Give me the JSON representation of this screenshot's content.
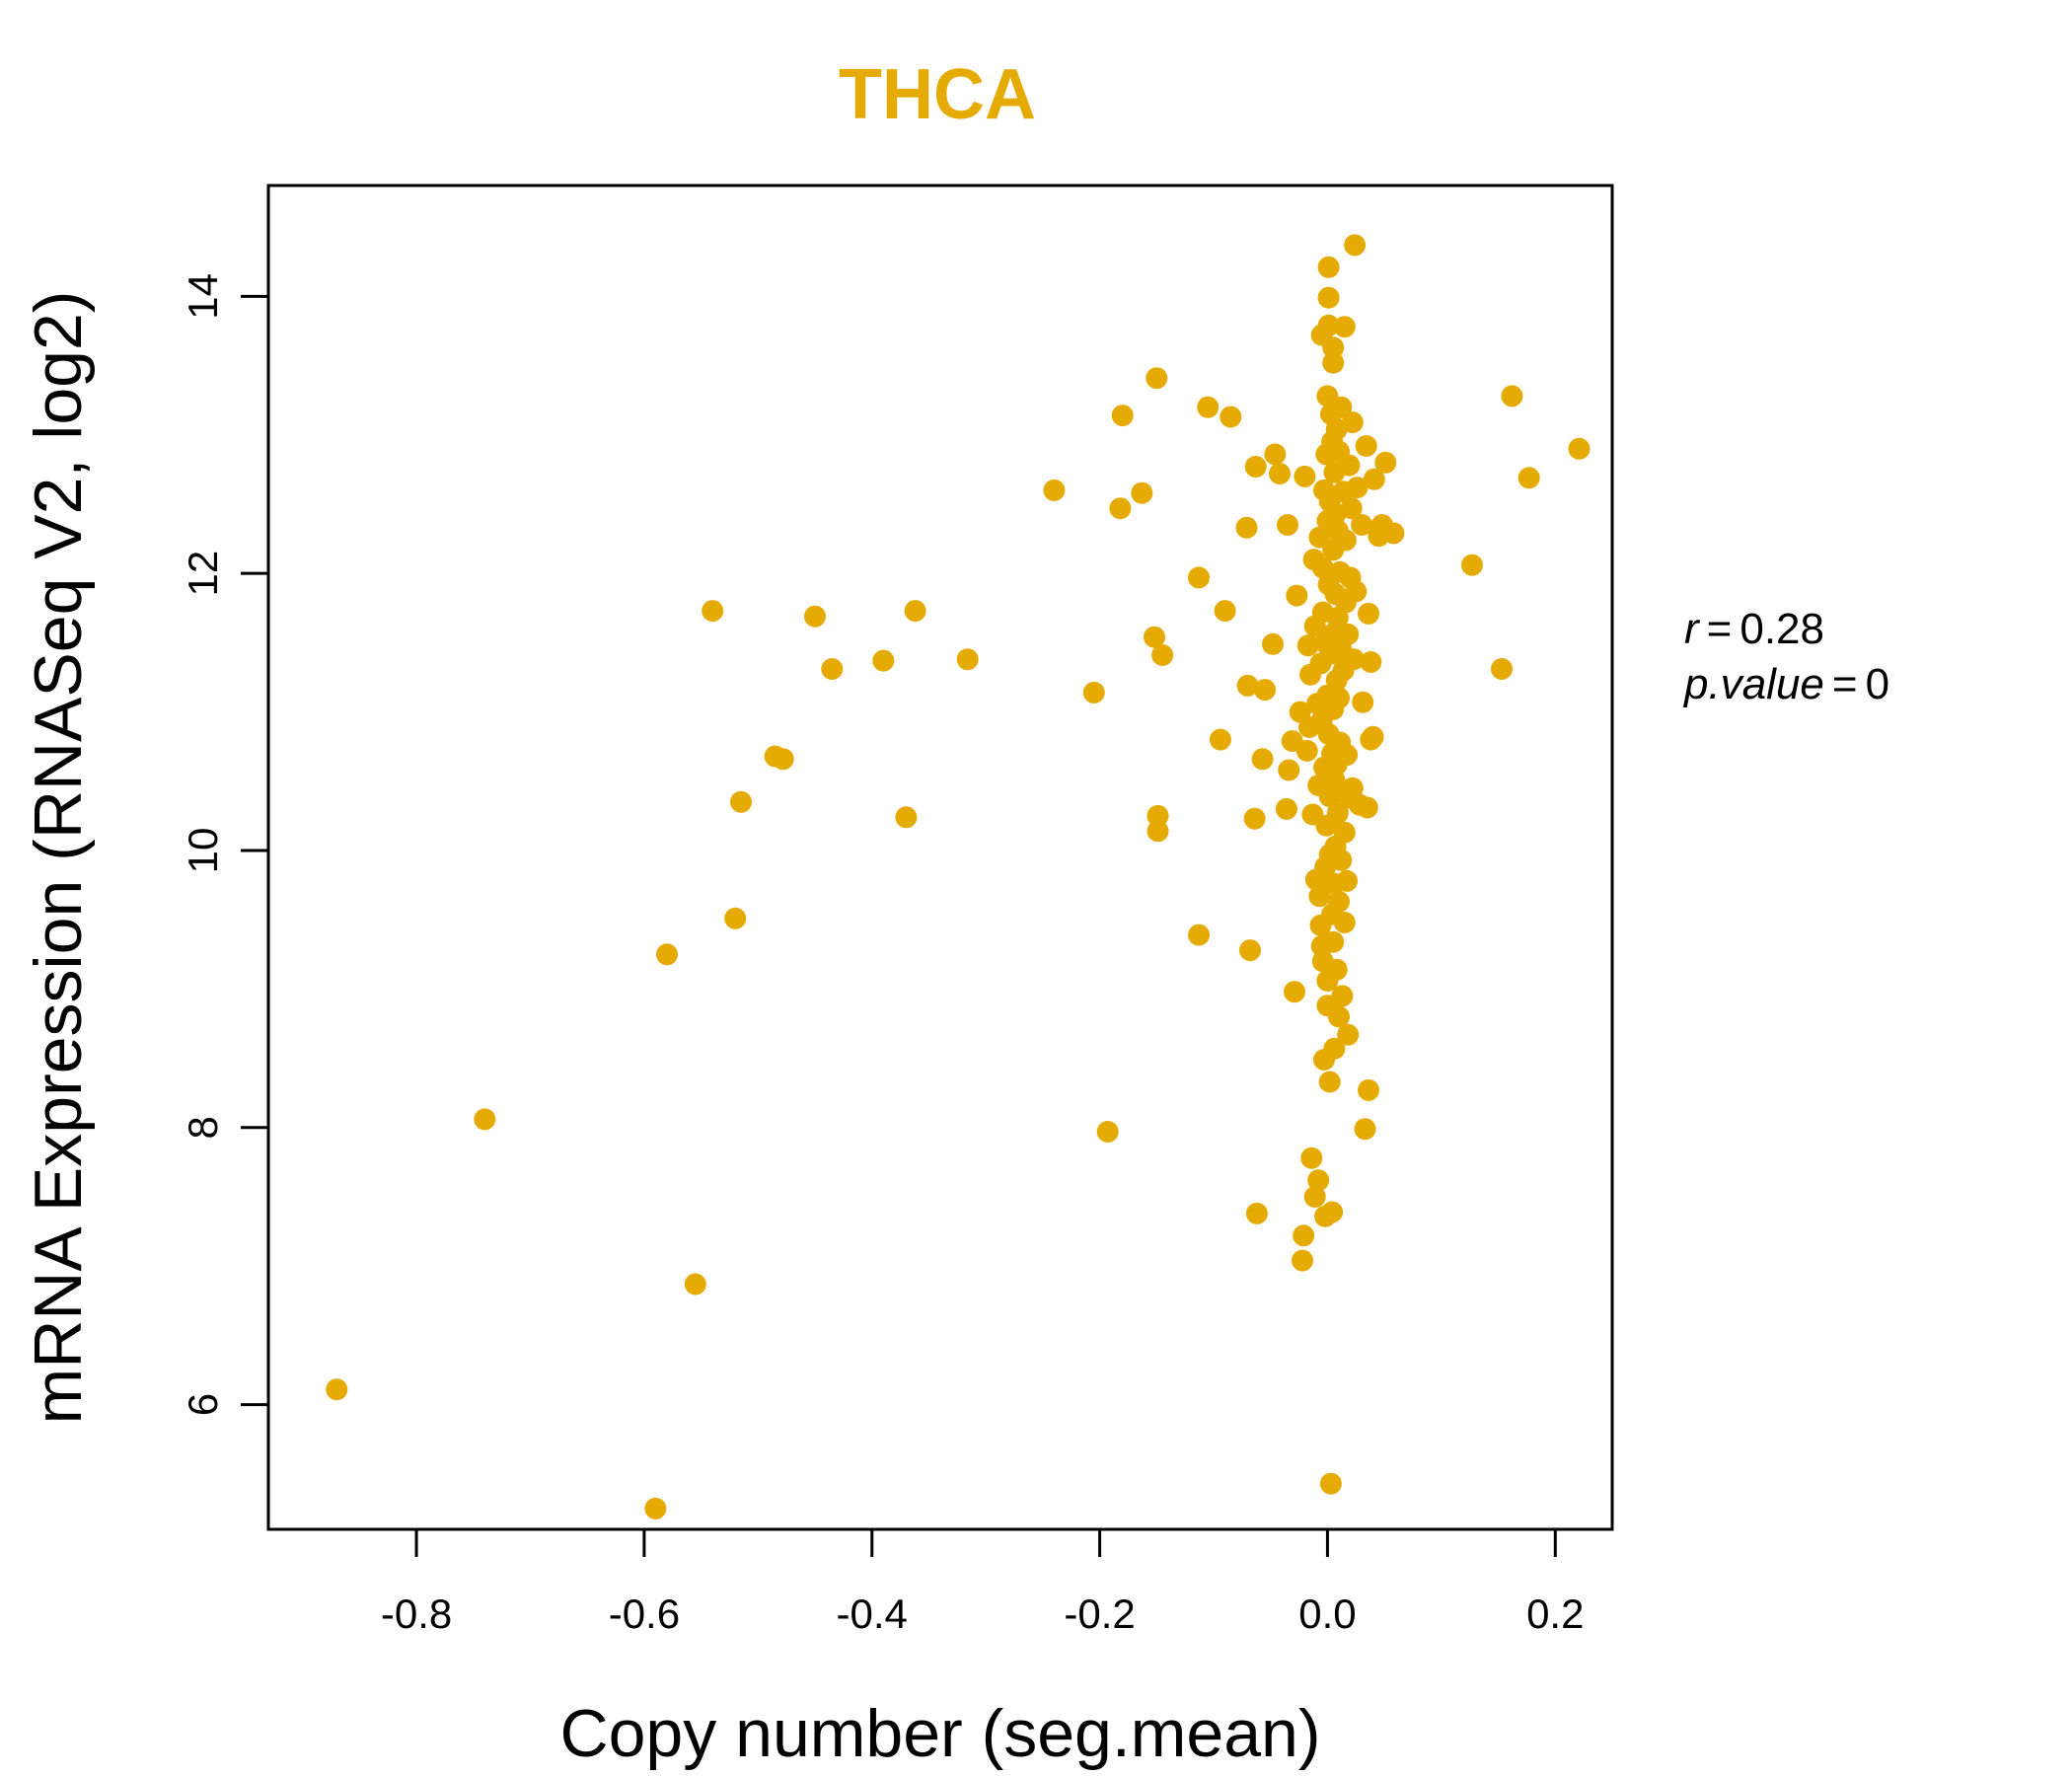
{
  "chart_data": {
    "type": "scatter",
    "title": "THCA",
    "xlabel": "Copy number (seg.mean)",
    "ylabel": "mRNA Expression (RNASeq V2, log2)",
    "xlim": [
      -0.93,
      0.25
    ],
    "ylim": [
      5.1,
      14.8
    ],
    "x_ticks": [
      -0.8,
      -0.6,
      -0.4,
      -0.2,
      0.0,
      0.2
    ],
    "x_tick_labels": [
      "-0.8",
      "-0.6",
      "-0.4",
      "-0.2",
      "0.0",
      "0.2"
    ],
    "y_ticks": [
      6,
      8,
      10,
      12,
      14
    ],
    "y_tick_labels": [
      "6",
      "8",
      "10",
      "12",
      "14"
    ],
    "point_color": "#E6AB02",
    "title_color": "#E6AB02",
    "grid": false,
    "stats": {
      "r_label": "r",
      "r_value": "0.28",
      "p_label": "p.value",
      "p_value": "0"
    },
    "points": [
      [
        -0.87,
        6.11
      ],
      [
        -0.74,
        8.06
      ],
      [
        -0.59,
        5.25
      ],
      [
        -0.58,
        9.25
      ],
      [
        -0.555,
        6.87
      ],
      [
        -0.54,
        11.73
      ],
      [
        -0.52,
        9.51
      ],
      [
        -0.515,
        10.35
      ],
      [
        -0.485,
        10.68
      ],
      [
        -0.478,
        10.66
      ],
      [
        -0.45,
        11.69
      ],
      [
        -0.435,
        11.31
      ],
      [
        -0.39,
        11.37
      ],
      [
        -0.37,
        10.24
      ],
      [
        -0.362,
        11.73
      ],
      [
        -0.316,
        11.38
      ],
      [
        -0.24,
        12.6
      ],
      [
        -0.205,
        11.14
      ],
      [
        -0.193,
        7.97
      ],
      [
        -0.182,
        12.47
      ],
      [
        -0.18,
        13.14
      ],
      [
        -0.163,
        12.58
      ],
      [
        -0.152,
        11.54
      ],
      [
        -0.15,
        13.41
      ],
      [
        -0.149,
        10.25
      ],
      [
        -0.149,
        10.14
      ],
      [
        -0.145,
        11.41
      ],
      [
        -0.113,
        11.97
      ],
      [
        -0.113,
        9.39
      ],
      [
        -0.105,
        13.2
      ],
      [
        -0.094,
        10.8
      ],
      [
        -0.09,
        11.73
      ],
      [
        -0.085,
        13.13
      ],
      [
        -0.071,
        12.33
      ],
      [
        -0.07,
        11.19
      ],
      [
        -0.068,
        9.28
      ],
      [
        -0.064,
        10.23
      ],
      [
        -0.063,
        12.77
      ],
      [
        -0.062,
        7.38
      ],
      [
        -0.057,
        10.66
      ],
      [
        -0.055,
        11.16
      ],
      [
        -0.048,
        11.49
      ],
      [
        -0.046,
        12.86
      ],
      [
        -0.042,
        12.72
      ],
      [
        -0.036,
        10.3
      ],
      [
        -0.035,
        12.35
      ],
      [
        -0.034,
        10.58
      ],
      [
        -0.031,
        10.79
      ],
      [
        -0.029,
        8.98
      ],
      [
        -0.027,
        11.84
      ],
      [
        -0.024,
        11.0
      ],
      [
        -0.022,
        7.04
      ],
      [
        -0.021,
        7.22
      ],
      [
        -0.02,
        12.7
      ],
      [
        -0.018,
        10.72
      ],
      [
        -0.017,
        11.48
      ],
      [
        -0.016,
        10.89
      ],
      [
        -0.015,
        11.27
      ],
      [
        -0.014,
        7.78
      ],
      [
        -0.013,
        10.26
      ],
      [
        -0.012,
        12.1
      ],
      [
        -0.011,
        7.5
      ],
      [
        -0.011,
        11.62
      ],
      [
        -0.01,
        9.79
      ],
      [
        -0.009,
        11.06
      ],
      [
        -0.008,
        7.62
      ],
      [
        -0.008,
        10.47
      ],
      [
        -0.007,
        9.67
      ],
      [
        -0.007,
        12.26
      ],
      [
        -0.006,
        9.46
      ],
      [
        -0.006,
        11.35
      ],
      [
        -0.005,
        9.31
      ],
      [
        -0.005,
        13.72
      ],
      [
        -0.005,
        10.94
      ],
      [
        -0.004,
        9.2
      ],
      [
        -0.004,
        12.04
      ],
      [
        -0.004,
        11.72
      ],
      [
        -0.003,
        8.49
      ],
      [
        -0.003,
        10.6
      ],
      [
        -0.003,
        12.6
      ],
      [
        -0.002,
        7.36
      ],
      [
        -0.002,
        11.5
      ],
      [
        -0.002,
        9.88
      ],
      [
        -0.001,
        10.18
      ],
      [
        -0.001,
        12.86
      ],
      [
        0.0,
        13.28
      ],
      [
        0.0,
        11.12
      ],
      [
        0.0,
        9.06
      ],
      [
        0.0,
        8.88
      ],
      [
        0.0,
        12.38
      ],
      [
        0.001,
        14.21
      ],
      [
        0.001,
        13.99
      ],
      [
        0.001,
        13.79
      ],
      [
        0.001,
        10.84
      ],
      [
        0.001,
        11.92
      ],
      [
        0.002,
        9.97
      ],
      [
        0.002,
        10.39
      ],
      [
        0.002,
        12.52
      ],
      [
        0.002,
        8.33
      ],
      [
        0.003,
        5.43
      ],
      [
        0.003,
        11.42
      ],
      [
        0.003,
        13.15
      ],
      [
        0.004,
        7.39
      ],
      [
        0.004,
        10.7
      ],
      [
        0.004,
        9.54
      ],
      [
        0.004,
        12.95
      ],
      [
        0.005,
        13.63
      ],
      [
        0.005,
        13.52
      ],
      [
        0.005,
        11.02
      ],
      [
        0.005,
        9.34
      ],
      [
        0.005,
        12.17
      ],
      [
        0.006,
        11.57
      ],
      [
        0.006,
        10.51
      ],
      [
        0.006,
        8.57
      ],
      [
        0.006,
        12.73
      ],
      [
        0.006,
        9.76
      ],
      [
        0.007,
        11.85
      ],
      [
        0.007,
        10.03
      ],
      [
        0.007,
        12.43
      ],
      [
        0.008,
        11.23
      ],
      [
        0.008,
        10.62
      ],
      [
        0.008,
        13.04
      ],
      [
        0.008,
        9.14
      ],
      [
        0.009,
        11.68
      ],
      [
        0.009,
        10.27
      ],
      [
        0.009,
        12.31
      ],
      [
        0.01,
        8.8
      ],
      [
        0.01,
        11.1
      ],
      [
        0.01,
        9.63
      ],
      [
        0.01,
        12.88
      ],
      [
        0.011,
        10.78
      ],
      [
        0.011,
        12.01
      ],
      [
        0.012,
        11.45
      ],
      [
        0.012,
        9.93
      ],
      [
        0.012,
        13.2
      ],
      [
        0.013,
        10.44
      ],
      [
        0.013,
        8.95
      ],
      [
        0.014,
        12.59
      ],
      [
        0.014,
        11.3
      ],
      [
        0.015,
        10.13
      ],
      [
        0.015,
        13.78
      ],
      [
        0.015,
        9.48
      ],
      [
        0.016,
        11.79
      ],
      [
        0.016,
        12.24
      ],
      [
        0.017,
        9.78
      ],
      [
        0.017,
        10.69
      ],
      [
        0.018,
        8.67
      ],
      [
        0.018,
        11.56
      ],
      [
        0.019,
        12.78
      ],
      [
        0.019,
        10.38
      ],
      [
        0.02,
        11.97
      ],
      [
        0.021,
        12.47
      ],
      [
        0.022,
        13.09
      ],
      [
        0.022,
        10.45
      ],
      [
        0.023,
        11.38
      ],
      [
        0.024,
        14.37
      ],
      [
        0.025,
        11.87
      ],
      [
        0.026,
        12.62
      ],
      [
        0.028,
        10.33
      ],
      [
        0.03,
        12.35
      ],
      [
        0.031,
        11.07
      ],
      [
        0.033,
        7.99
      ],
      [
        0.034,
        12.92
      ],
      [
        0.035,
        10.31
      ],
      [
        0.036,
        11.71
      ],
      [
        0.036,
        8.27
      ],
      [
        0.038,
        10.8
      ],
      [
        0.038,
        11.36
      ],
      [
        0.04,
        10.82
      ],
      [
        0.041,
        12.68
      ],
      [
        0.045,
        12.27
      ],
      [
        0.048,
        12.35
      ],
      [
        0.051,
        12.8
      ],
      [
        0.058,
        12.29
      ],
      [
        0.127,
        12.06
      ],
      [
        0.153,
        11.31
      ],
      [
        0.162,
        13.28
      ],
      [
        0.177,
        12.69
      ],
      [
        0.221,
        12.9
      ]
    ]
  }
}
